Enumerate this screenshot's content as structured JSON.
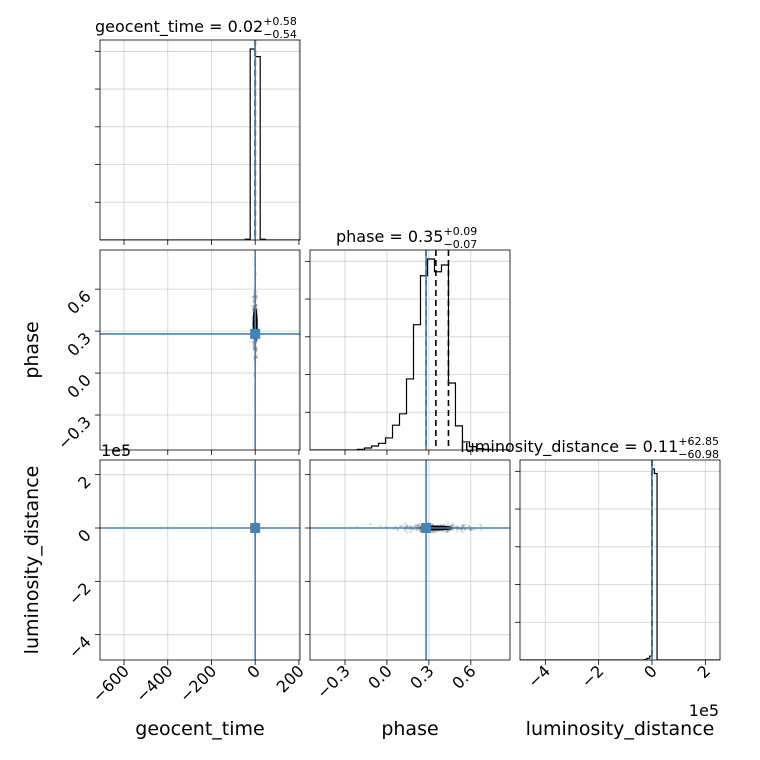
{
  "chart_data": {
    "type": "corner",
    "parameters": [
      "geocent_time",
      "phase",
      "luminosity_distance"
    ],
    "axis_labels": {
      "geocent_time": "geocent_time",
      "phase": "phase",
      "luminosity_distance": "luminosity_distance"
    },
    "ranges": {
      "geocent_time": [
        -710,
        205
      ],
      "phase": [
        -0.55,
        0.88
      ],
      "luminosity_distance": [
        -495000,
        255000
      ]
    },
    "ticks": {
      "geocent_time": [
        -600,
        -400,
        -200,
        0,
        200
      ],
      "phase": [
        -0.3,
        0.0,
        0.3,
        0.6
      ],
      "luminosity_distance": [
        -4,
        -2,
        0,
        2
      ]
    },
    "tick_labels": {
      "geocent_time": [
        "−600",
        "−400",
        "−200",
        "0",
        "200"
      ],
      "phase": [
        "−0.3",
        "0.0",
        "0.3",
        "0.6"
      ],
      "luminosity_distance": [
        "−4",
        "−2",
        "0",
        "2"
      ]
    },
    "offset_label": "1e5",
    "luminosity_distance_scale": 100000,
    "truths": {
      "geocent_time": 0,
      "phase": 0.28,
      "luminosity_distance": 0
    },
    "summaries": [
      {
        "param": "geocent_time",
        "name": "geocent_time",
        "median": "0.02",
        "plus": "+0.58",
        "minus": "−0.54",
        "quantiles": [
          -0.52,
          0.02,
          0.6
        ]
      },
      {
        "param": "phase",
        "name": "phase",
        "median": "0.35",
        "plus": "+0.09",
        "minus": "−0.07",
        "quantiles": [
          0.28,
          0.35,
          0.44
        ]
      },
      {
        "param": "luminosity_distance",
        "name": "luminosity_distance",
        "median": "0.11",
        "plus": "+62.85",
        "minus": "−60.98",
        "quantiles": [
          -60.87,
          0.11,
          62.96
        ]
      }
    ],
    "histograms": {
      "geocent_time": {
        "edges": [
          -710,
          -45.75,
          -22.875,
          0,
          22.875,
          45.75,
          205
        ],
        "counts": [
          0,
          1,
          250,
          240,
          1,
          0
        ]
      },
      "phase": {
        "edges": [
          -0.55,
          -0.21,
          -0.16,
          -0.11,
          -0.06,
          -0.01,
          0.04,
          0.09,
          0.14,
          0.19,
          0.24,
          0.29,
          0.34,
          0.39,
          0.44,
          0.49,
          0.54,
          0.59,
          0.64,
          0.69,
          0.74,
          0.79,
          0.88
        ],
        "counts": [
          0,
          1,
          3,
          6,
          10,
          18,
          37,
          54,
          106,
          187,
          260,
          285,
          266,
          276,
          100,
          36,
          12,
          5,
          2,
          1,
          0,
          0
        ]
      },
      "luminosity_distance": {
        "edges": [
          -495000,
          -29000,
          -19000,
          -9000,
          0,
          9000,
          19000,
          29000,
          255000
        ],
        "counts": [
          0,
          1,
          3,
          7,
          342,
          334,
          0,
          0
        ]
      }
    }
  }
}
